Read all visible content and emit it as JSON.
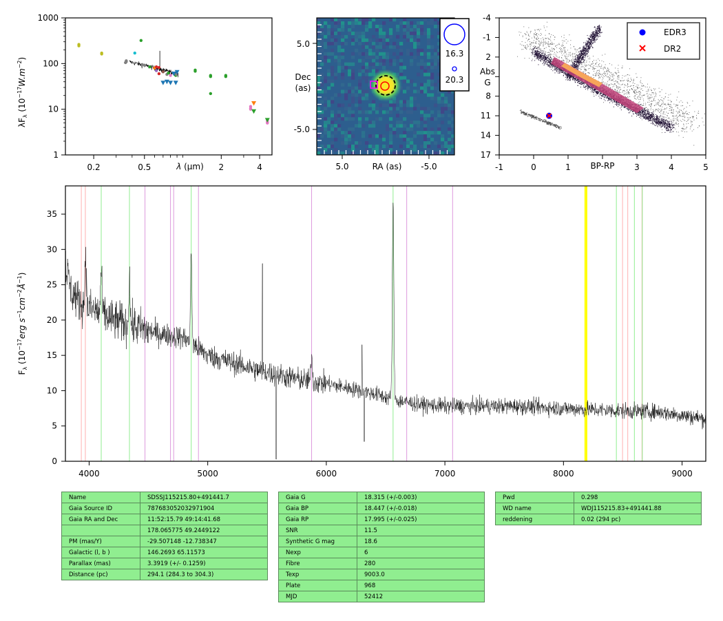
{
  "chart_data": [
    {
      "id": "sed",
      "type": "scatter",
      "xlabel": "λ (μm)",
      "ylabel": "λF_λ (10^-17 W.m^-2)",
      "xscale": "log",
      "yscale": "log",
      "xlim": [
        0.12,
        5.0
      ],
      "ylim": [
        1,
        1000
      ],
      "xtick_labels": [
        "0.2",
        "0.5",
        "2",
        "4"
      ],
      "ytick_labels": [
        "1",
        "10",
        "100",
        "1000"
      ],
      "points": [
        {
          "x": 0.153,
          "y": 245,
          "color": "#bcbd22"
        },
        {
          "x": 0.153,
          "y": 262,
          "color": "#bcbd22"
        },
        {
          "x": 0.231,
          "y": 162,
          "color": "#bcbd22"
        },
        {
          "x": 0.231,
          "y": 170,
          "color": "#bcbd22"
        },
        {
          "x": 0.355,
          "y": 105,
          "color": "#7f7f7f"
        },
        {
          "x": 0.36,
          "y": 115,
          "color": "#7f7f7f"
        },
        {
          "x": 0.36,
          "y": 110,
          "color": "#7f7f7f"
        },
        {
          "x": 0.42,
          "y": 170,
          "color": "#17becf"
        },
        {
          "x": 0.47,
          "y": 320,
          "color": "#2ca02c"
        },
        {
          "x": 0.48,
          "y": 95,
          "color": "#7f7f7f"
        },
        {
          "x": 0.5,
          "y": 92,
          "color": "#7f7f7f"
        },
        {
          "x": 0.55,
          "y": 85,
          "color": "#2ca02c"
        },
        {
          "x": 0.6,
          "y": 80,
          "color": "#ff7f0e"
        },
        {
          "x": 0.62,
          "y": 70,
          "color": "#9467bd"
        },
        {
          "x": 0.62,
          "y": 85,
          "color": "#d62728"
        },
        {
          "x": 0.65,
          "y": 60,
          "color": "#d62728"
        },
        {
          "x": 0.65,
          "y": 82,
          "color": "#d62728"
        },
        {
          "x": 0.7,
          "y": 66,
          "color": "#8c564b"
        },
        {
          "x": 0.75,
          "y": 58,
          "color": "#7f7f7f"
        },
        {
          "x": 0.77,
          "y": 62,
          "color": "#2ca02c"
        },
        {
          "x": 0.8,
          "y": 55,
          "color": "#e377c2"
        },
        {
          "x": 0.88,
          "y": 55,
          "color": "#2ca02c"
        },
        {
          "x": 0.89,
          "y": 58,
          "color": "#7f7f7f"
        },
        {
          "x": 1.25,
          "y": 72,
          "color": "#2ca02c"
        },
        {
          "x": 1.25,
          "y": 68,
          "color": "#2ca02c"
        },
        {
          "x": 1.65,
          "y": 55,
          "color": "#2ca02c"
        },
        {
          "x": 1.65,
          "y": 52,
          "color": "#2ca02c"
        },
        {
          "x": 1.65,
          "y": 22,
          "color": "#2ca02c"
        },
        {
          "x": 2.17,
          "y": 55,
          "color": "#2ca02c"
        },
        {
          "x": 2.17,
          "y": 52,
          "color": "#2ca02c"
        },
        {
          "x": 3.4,
          "y": 11.5,
          "color": "#e377c2"
        },
        {
          "x": 3.4,
          "y": 10.5,
          "color": "#e377c2"
        },
        {
          "x": 3.4,
          "y": 10,
          "color": "#e377c2"
        },
        {
          "x": 4.6,
          "y": 5.8,
          "color": "#e377c2"
        },
        {
          "x": 4.6,
          "y": 5.3,
          "color": "#e377c2"
        },
        {
          "x": 4.6,
          "y": 5.0,
          "color": "#e377c2"
        }
      ],
      "upper_limits": [
        {
          "x": 0.7,
          "y": 38,
          "color": "#1f77b4"
        },
        {
          "x": 0.75,
          "y": 40,
          "color": "#1f77b4"
        },
        {
          "x": 0.8,
          "y": 38,
          "color": "#1f77b4"
        },
        {
          "x": 0.85,
          "y": 60,
          "color": "#1f77b4"
        },
        {
          "x": 0.88,
          "y": 38,
          "color": "#1f77b4"
        },
        {
          "x": 0.9,
          "y": 65,
          "color": "#1f77b4"
        },
        {
          "x": 3.6,
          "y": 9,
          "color": "#2ca02c"
        },
        {
          "x": 3.6,
          "y": 13.5,
          "color": "#ff7f0e"
        },
        {
          "x": 4.6,
          "y": 5.8,
          "color": "#2ca02c"
        }
      ],
      "spectrum_overlay": "black line 0.38–0.92 μm, ~110 → ~60"
    },
    {
      "id": "image",
      "type": "heatmap",
      "xlabel": "RA (as)",
      "ylabel": "Dec\n(as)",
      "xtick_labels": [
        "5.0",
        "-5.0"
      ],
      "ytick_labels": [
        "5.0",
        "-5.0"
      ],
      "legend_labels": [
        "16.3",
        "20.3"
      ]
    },
    {
      "id": "hrd",
      "type": "scatter",
      "xlabel": "BP-RP",
      "ylabel": "Abs\nG",
      "xlim": [
        -1,
        5
      ],
      "ylim": [
        17,
        -4
      ],
      "xtick_labels": [
        "-1",
        "0",
        "1",
        "2",
        "3",
        "4",
        "5"
      ],
      "ytick_labels": [
        "-4",
        "-1",
        "2",
        "5",
        "8",
        "11",
        "14",
        "17"
      ],
      "legend": [
        {
          "name": "EDR3",
          "color": "#0000ff",
          "marker": "circle"
        },
        {
          "name": "DR2",
          "color": "#ff0000",
          "marker": "x"
        }
      ],
      "points": [
        {
          "series": "EDR3",
          "x": 0.45,
          "y": 11.0
        },
        {
          "series": "DR2",
          "x": 0.45,
          "y": 11.0
        }
      ],
      "legend_position": "top-right"
    },
    {
      "id": "spectrum",
      "type": "line",
      "ylabel": "F_λ (10^-17 erg s^-1 cm^-2 Å^-1)",
      "xlim": [
        3800,
        9200
      ],
      "ylim": [
        0,
        39
      ],
      "xtick_labels": [
        "4000",
        "5000",
        "6000",
        "7000",
        "8000",
        "9000"
      ],
      "ytick_labels": [
        "0",
        "5",
        "10",
        "15",
        "20",
        "25",
        "30",
        "35"
      ],
      "continuum": [
        [
          3800,
          28
        ],
        [
          3850,
          24
        ],
        [
          3950,
          22
        ],
        [
          4100,
          21
        ],
        [
          4200,
          20
        ],
        [
          4400,
          19
        ],
        [
          4600,
          18
        ],
        [
          4800,
          17.5
        ],
        [
          5000,
          15
        ],
        [
          5200,
          14
        ],
        [
          5400,
          13
        ],
        [
          5600,
          12.2
        ],
        [
          5800,
          11.5
        ],
        [
          6000,
          11
        ],
        [
          6200,
          10.3
        ],
        [
          6400,
          9.6
        ],
        [
          6600,
          8.6
        ],
        [
          6800,
          8.0
        ],
        [
          7000,
          7.8
        ],
        [
          7300,
          7.8
        ],
        [
          7600,
          7.8
        ],
        [
          8000,
          7.5
        ],
        [
          8400,
          7.2
        ],
        [
          8800,
          7.0
        ],
        [
          9200,
          6.0
        ]
      ],
      "emission_lines": [
        {
          "x": 3970,
          "h": 8
        },
        {
          "x": 4102,
          "h": 6
        },
        {
          "x": 4340,
          "h": 7
        },
        {
          "x": 4861,
          "h": 13
        },
        {
          "x": 5876,
          "h": 4
        },
        {
          "x": 6563,
          "h": 28
        }
      ],
      "vlines": [
        {
          "x": 3934,
          "color": "#ffb0b0"
        },
        {
          "x": 3968,
          "color": "#ffb0b0"
        },
        {
          "x": 4102,
          "color": "#90ee90"
        },
        {
          "x": 4340,
          "color": "#90ee90"
        },
        {
          "x": 4471,
          "color": "#dd99dd"
        },
        {
          "x": 4686,
          "color": "#dd99dd"
        },
        {
          "x": 4713,
          "color": "#dd99dd"
        },
        {
          "x": 4861,
          "color": "#90ee90"
        },
        {
          "x": 4922,
          "color": "#dd99dd"
        },
        {
          "x": 5876,
          "color": "#dd99dd"
        },
        {
          "x": 6563,
          "color": "#90ee90"
        },
        {
          "x": 6678,
          "color": "#dd99dd"
        },
        {
          "x": 7065,
          "color": "#dd99dd"
        },
        {
          "x": 8183,
          "color": "#ffff00",
          "w": 2
        },
        {
          "x": 8195,
          "color": "#ffff00",
          "w": 2
        },
        {
          "x": 8446,
          "color": "#90ee90"
        },
        {
          "x": 8498,
          "color": "#ffb0b0"
        },
        {
          "x": 8542,
          "color": "#ffb0b0"
        },
        {
          "x": 8598,
          "color": "#90ee90"
        },
        {
          "x": 8662,
          "color": "#ffb0b0"
        },
        {
          "x": 8665,
          "color": "#90ee90"
        }
      ]
    }
  ],
  "tables": {
    "left": [
      [
        "Name",
        "SDSSJ115215.80+491441.7"
      ],
      [
        "Gaia Source ID",
        "787683052032971904"
      ],
      [
        "Gaia RA and Dec",
        "11:52:15.79     49:14:41.68"
      ],
      [
        "",
        "178.065775     49.2449122"
      ],
      [
        "PM (mas/Y)",
        "-29.507148     -12.738347"
      ],
      [
        "Galactic (l, b )",
        "146.2693     65.11573"
      ],
      [
        "Parallax (mas)",
        "3.3919 (+/- 0.1259)"
      ],
      [
        "Distance (pc)",
        "294.1 (284.3 to 304.3)"
      ]
    ],
    "middle": [
      [
        "Gaia G",
        "18.315 (+/-0.003)"
      ],
      [
        "Gaia BP",
        "18.447 (+/-0.018)"
      ],
      [
        "Gaia RP",
        "17.995 (+/-0.025)"
      ],
      [
        "SNR",
        "11.5"
      ],
      [
        "Synthetic G mag",
        "18.6"
      ],
      [
        "Nexp",
        "6"
      ],
      [
        "Fibre",
        "280"
      ],
      [
        "Texp",
        "9003.0"
      ],
      [
        "Plate",
        "968"
      ],
      [
        "MJD",
        "52412"
      ]
    ],
    "right": [
      [
        "Pwd",
        "0.298"
      ],
      [
        "WD name",
        "WDJ115215.83+491441.88"
      ],
      [
        "reddening",
        "0.02 (294 pc)"
      ]
    ]
  }
}
